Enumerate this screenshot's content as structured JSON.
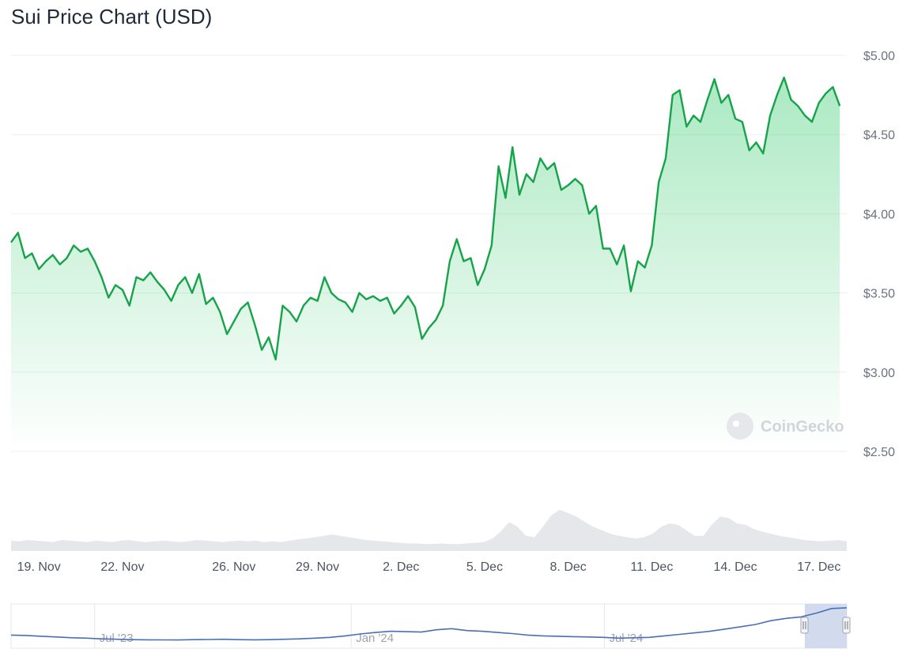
{
  "chart_data": {
    "type": "area",
    "title": "Sui Price Chart (USD)",
    "currency": "USD",
    "y_range": [
      2.5,
      5.0
    ],
    "y_ticks": [
      "$5.00",
      "$4.50",
      "$4.00",
      "$3.50",
      "$3.00",
      "$2.50"
    ],
    "y_tick_values": [
      5.0,
      4.5,
      4.0,
      3.5,
      3.0,
      2.5
    ],
    "x_range": [
      "2024-11-18",
      "2024-12-18"
    ],
    "x_ticks": [
      "19. Nov",
      "22. Nov",
      "26. Nov",
      "29. Nov",
      "2. Dec",
      "5. Dec",
      "8. Dec",
      "11. Dec",
      "14. Dec",
      "17. Dec"
    ],
    "x_tick_dates": [
      "2024-11-19",
      "2024-11-22",
      "2024-11-26",
      "2024-11-29",
      "2024-12-02",
      "2024-12-05",
      "2024-12-08",
      "2024-12-11",
      "2024-12-14",
      "2024-12-17"
    ],
    "grid": true,
    "series": [
      {
        "color": "#16a34a",
        "fill_color": "#22c55e",
        "points": [
          [
            "2024-11-18 00:00",
            3.82
          ],
          [
            "2024-11-18 06:00",
            3.88
          ],
          [
            "2024-11-18 12:00",
            3.72
          ],
          [
            "2024-11-18 18:00",
            3.75
          ],
          [
            "2024-11-19 00:00",
            3.65
          ],
          [
            "2024-11-19 06:00",
            3.7
          ],
          [
            "2024-11-19 12:00",
            3.74
          ],
          [
            "2024-11-19 18:00",
            3.68
          ],
          [
            "2024-11-20 00:00",
            3.72
          ],
          [
            "2024-11-20 06:00",
            3.8
          ],
          [
            "2024-11-20 12:00",
            3.76
          ],
          [
            "2024-11-20 18:00",
            3.78
          ],
          [
            "2024-11-21 00:00",
            3.7
          ],
          [
            "2024-11-21 06:00",
            3.6
          ],
          [
            "2024-11-21 12:00",
            3.47
          ],
          [
            "2024-11-21 18:00",
            3.55
          ],
          [
            "2024-11-22 00:00",
            3.52
          ],
          [
            "2024-11-22 06:00",
            3.42
          ],
          [
            "2024-11-22 12:00",
            3.6
          ],
          [
            "2024-11-22 18:00",
            3.58
          ],
          [
            "2024-11-23 00:00",
            3.63
          ],
          [
            "2024-11-23 06:00",
            3.57
          ],
          [
            "2024-11-23 12:00",
            3.52
          ],
          [
            "2024-11-23 18:00",
            3.45
          ],
          [
            "2024-11-24 00:00",
            3.55
          ],
          [
            "2024-11-24 06:00",
            3.6
          ],
          [
            "2024-11-24 12:00",
            3.5
          ],
          [
            "2024-11-24 18:00",
            3.62
          ],
          [
            "2024-11-25 00:00",
            3.43
          ],
          [
            "2024-11-25 06:00",
            3.47
          ],
          [
            "2024-11-25 12:00",
            3.38
          ],
          [
            "2024-11-25 18:00",
            3.24
          ],
          [
            "2024-11-26 00:00",
            3.32
          ],
          [
            "2024-11-26 06:00",
            3.4
          ],
          [
            "2024-11-26 12:00",
            3.44
          ],
          [
            "2024-11-26 18:00",
            3.3
          ],
          [
            "2024-11-27 00:00",
            3.14
          ],
          [
            "2024-11-27 06:00",
            3.22
          ],
          [
            "2024-11-27 12:00",
            3.08
          ],
          [
            "2024-11-27 18:00",
            3.42
          ],
          [
            "2024-11-28 00:00",
            3.38
          ],
          [
            "2024-11-28 06:00",
            3.32
          ],
          [
            "2024-11-28 12:00",
            3.42
          ],
          [
            "2024-11-28 18:00",
            3.47
          ],
          [
            "2024-11-29 00:00",
            3.45
          ],
          [
            "2024-11-29 06:00",
            3.6
          ],
          [
            "2024-11-29 12:00",
            3.5
          ],
          [
            "2024-11-29 18:00",
            3.46
          ],
          [
            "2024-11-30 00:00",
            3.44
          ],
          [
            "2024-11-30 06:00",
            3.38
          ],
          [
            "2024-11-30 12:00",
            3.5
          ],
          [
            "2024-11-30 18:00",
            3.46
          ],
          [
            "2024-12-01 00:00",
            3.48
          ],
          [
            "2024-12-01 06:00",
            3.45
          ],
          [
            "2024-12-01 12:00",
            3.47
          ],
          [
            "2024-12-01 18:00",
            3.37
          ],
          [
            "2024-12-02 00:00",
            3.42
          ],
          [
            "2024-12-02 06:00",
            3.48
          ],
          [
            "2024-12-02 12:00",
            3.41
          ],
          [
            "2024-12-02 18:00",
            3.21
          ],
          [
            "2024-12-03 00:00",
            3.28
          ],
          [
            "2024-12-03 06:00",
            3.33
          ],
          [
            "2024-12-03 12:00",
            3.42
          ],
          [
            "2024-12-03 18:00",
            3.7
          ],
          [
            "2024-12-04 00:00",
            3.84
          ],
          [
            "2024-12-04 06:00",
            3.7
          ],
          [
            "2024-12-04 12:00",
            3.72
          ],
          [
            "2024-12-04 18:00",
            3.55
          ],
          [
            "2024-12-05 00:00",
            3.65
          ],
          [
            "2024-12-05 06:00",
            3.8
          ],
          [
            "2024-12-05 12:00",
            4.3
          ],
          [
            "2024-12-05 18:00",
            4.1
          ],
          [
            "2024-12-06 00:00",
            4.42
          ],
          [
            "2024-12-06 06:00",
            4.12
          ],
          [
            "2024-12-06 12:00",
            4.25
          ],
          [
            "2024-12-06 18:00",
            4.2
          ],
          [
            "2024-12-07 00:00",
            4.35
          ],
          [
            "2024-12-07 06:00",
            4.28
          ],
          [
            "2024-12-07 12:00",
            4.32
          ],
          [
            "2024-12-07 18:00",
            4.15
          ],
          [
            "2024-12-08 00:00",
            4.18
          ],
          [
            "2024-12-08 06:00",
            4.22
          ],
          [
            "2024-12-08 12:00",
            4.18
          ],
          [
            "2024-12-08 18:00",
            4.0
          ],
          [
            "2024-12-09 00:00",
            4.05
          ],
          [
            "2024-12-09 06:00",
            3.78
          ],
          [
            "2024-12-09 12:00",
            3.78
          ],
          [
            "2024-12-09 18:00",
            3.68
          ],
          [
            "2024-12-10 00:00",
            3.8
          ],
          [
            "2024-12-10 06:00",
            3.51
          ],
          [
            "2024-12-10 12:00",
            3.7
          ],
          [
            "2024-12-10 18:00",
            3.66
          ],
          [
            "2024-12-11 00:00",
            3.8
          ],
          [
            "2024-12-11 06:00",
            4.2
          ],
          [
            "2024-12-11 12:00",
            4.35
          ],
          [
            "2024-12-11 18:00",
            4.75
          ],
          [
            "2024-12-12 00:00",
            4.78
          ],
          [
            "2024-12-12 06:00",
            4.55
          ],
          [
            "2024-12-12 12:00",
            4.62
          ],
          [
            "2024-12-12 18:00",
            4.58
          ],
          [
            "2024-12-13 00:00",
            4.72
          ],
          [
            "2024-12-13 06:00",
            4.85
          ],
          [
            "2024-12-13 12:00",
            4.7
          ],
          [
            "2024-12-13 18:00",
            4.75
          ],
          [
            "2024-12-14 00:00",
            4.6
          ],
          [
            "2024-12-14 06:00",
            4.58
          ],
          [
            "2024-12-14 12:00",
            4.4
          ],
          [
            "2024-12-14 18:00",
            4.45
          ],
          [
            "2024-12-15 00:00",
            4.38
          ],
          [
            "2024-12-15 06:00",
            4.62
          ],
          [
            "2024-12-15 12:00",
            4.75
          ],
          [
            "2024-12-15 18:00",
            4.86
          ],
          [
            "2024-12-16 00:00",
            4.72
          ],
          [
            "2024-12-16 06:00",
            4.68
          ],
          [
            "2024-12-16 12:00",
            4.62
          ],
          [
            "2024-12-16 18:00",
            4.58
          ],
          [
            "2024-12-17 00:00",
            4.7
          ],
          [
            "2024-12-17 06:00",
            4.76
          ],
          [
            "2024-12-17 12:00",
            4.8
          ],
          [
            "2024-12-17 18:00",
            4.68
          ]
        ]
      }
    ],
    "volume": {
      "color": "#e5e7eb",
      "values": [
        0.15,
        0.14,
        0.16,
        0.15,
        0.14,
        0.13,
        0.16,
        0.15,
        0.14,
        0.13,
        0.15,
        0.14,
        0.13,
        0.15,
        0.16,
        0.14,
        0.13,
        0.14,
        0.15,
        0.14,
        0.13,
        0.14,
        0.16,
        0.15,
        0.14,
        0.13,
        0.14,
        0.15,
        0.14,
        0.15,
        0.13,
        0.14,
        0.13,
        0.15,
        0.17,
        0.18,
        0.2,
        0.22,
        0.24,
        0.22,
        0.2,
        0.18,
        0.16,
        0.15,
        0.14,
        0.13,
        0.12,
        0.11,
        0.11,
        0.1,
        0.1,
        0.11,
        0.1,
        0.1,
        0.11,
        0.12,
        0.13,
        0.18,
        0.28,
        0.42,
        0.35,
        0.22,
        0.2,
        0.35,
        0.52,
        0.6,
        0.55,
        0.5,
        0.42,
        0.35,
        0.3,
        0.25,
        0.22,
        0.2,
        0.18,
        0.2,
        0.25,
        0.35,
        0.4,
        0.38,
        0.3,
        0.22,
        0.22,
        0.38,
        0.5,
        0.48,
        0.4,
        0.38,
        0.32,
        0.28,
        0.25,
        0.22,
        0.2,
        0.18,
        0.16,
        0.15,
        0.14,
        0.15,
        0.16,
        0.14
      ],
      "max": 1.0
    },
    "navigator": {
      "ticks": [
        "Jul '23",
        "Jan '24",
        "Jul '24"
      ],
      "tick_fractions": [
        0.1,
        0.407,
        0.71
      ],
      "values": [
        1.1,
        1.05,
        0.95,
        0.85,
        0.75,
        0.7,
        0.6,
        0.55,
        0.5,
        0.48,
        0.47,
        0.46,
        0.5,
        0.52,
        0.55,
        0.5,
        0.48,
        0.5,
        0.55,
        0.6,
        0.7,
        0.8,
        1.0,
        1.25,
        1.45,
        1.6,
        1.55,
        1.5,
        1.8,
        1.95,
        1.7,
        1.6,
        1.45,
        1.3,
        1.1,
        1.0,
        0.95,
        0.9,
        0.85,
        0.8,
        0.7,
        0.75,
        0.8,
        1.0,
        1.2,
        1.4,
        1.6,
        1.9,
        2.2,
        2.5,
        3.0,
        3.3,
        3.5,
        4.0,
        4.6,
        4.7
      ],
      "range": [
        0,
        5.0
      ],
      "line_color": "#4a6fb5"
    },
    "watermark": "CoinGecko"
  }
}
